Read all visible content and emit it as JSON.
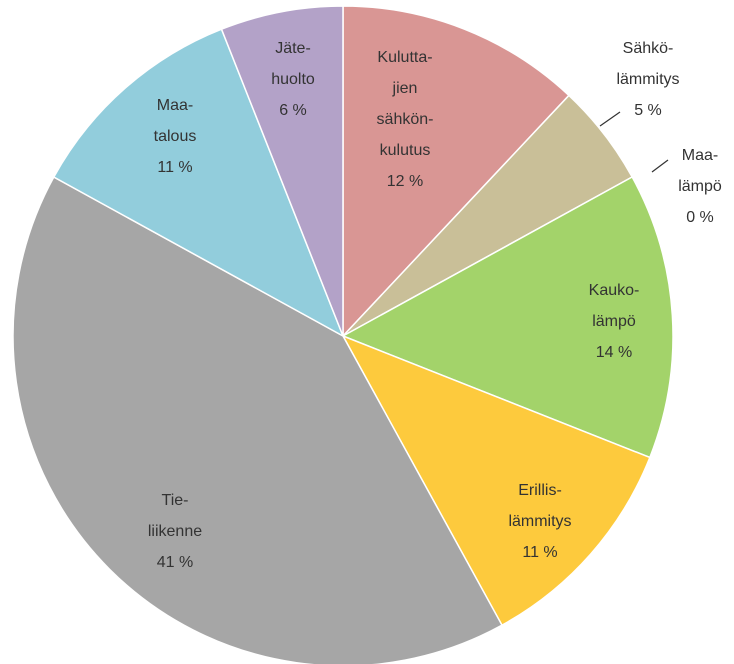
{
  "chart_data": {
    "type": "pie",
    "categories": [
      "Kulutta-\njien\nsähkön-\nkulutus",
      "Sähkö-\nlämmitys",
      "Maa-\nlämpö",
      "Kauko-\nlämpö",
      "Erillis-\nlämmitys",
      "Tie-\nliikenne",
      "Maa-\ntalous",
      "Jäte-\nhuolto"
    ],
    "values": [
      12,
      5,
      0,
      14,
      11,
      41,
      11,
      6
    ],
    "value_labels": [
      "12 %",
      "5 %",
      "0 %",
      "14 %",
      "11 %",
      "41 %",
      "11 %",
      "6 %"
    ],
    "colors": [
      "#d99694",
      "#c9bf98",
      "#f9be8c",
      "#a3d36a",
      "#fdca3d",
      "#a6a6a6",
      "#92cddc",
      "#b3a2c8"
    ]
  }
}
